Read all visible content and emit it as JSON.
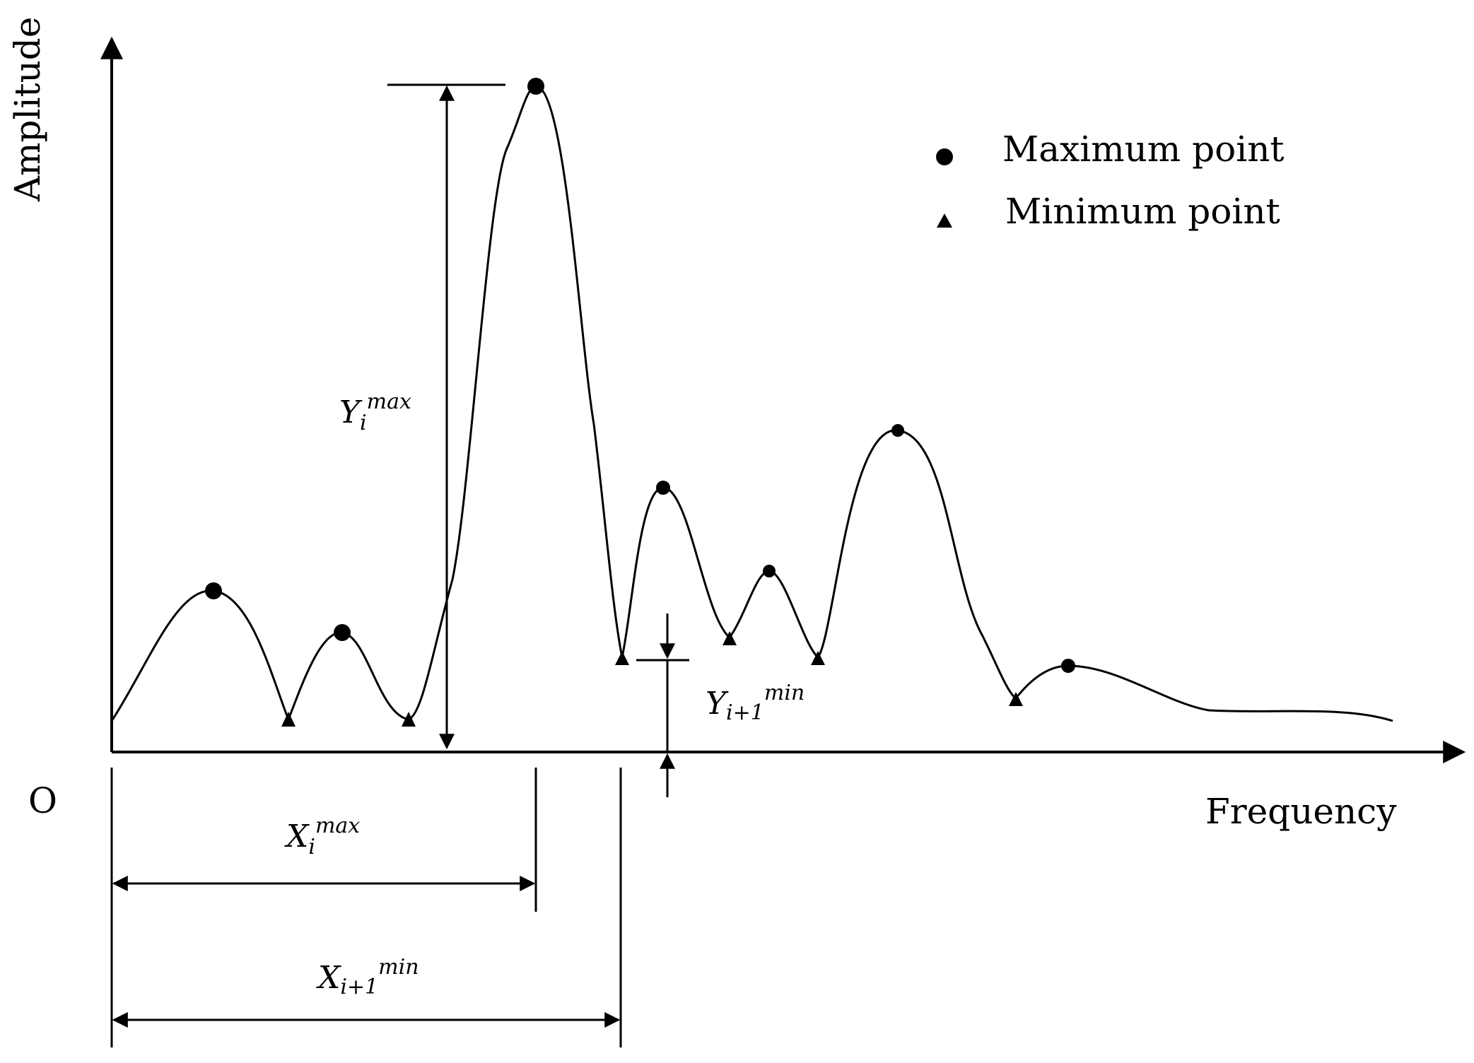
{
  "axes": {
    "y_label": "Amplitude",
    "x_label": "Frequency",
    "origin_label": "O"
  },
  "legend": {
    "items": [
      {
        "marker": "circle",
        "label": "Maximum point"
      },
      {
        "marker": "triangle",
        "label": "Minimum point"
      }
    ]
  },
  "annotations": {
    "y_max": {
      "base": "Y",
      "sub": "i",
      "sup": "max"
    },
    "y_min": {
      "base": "Y",
      "sub": "i+1",
      "sup": "min"
    },
    "x_max": {
      "base": "X",
      "sub": "i",
      "sup": "max"
    },
    "x_min": {
      "base": "X",
      "sub": "i+1",
      "sup": "min"
    }
  },
  "colors": {
    "ink": "#000000",
    "background": "#ffffff"
  }
}
